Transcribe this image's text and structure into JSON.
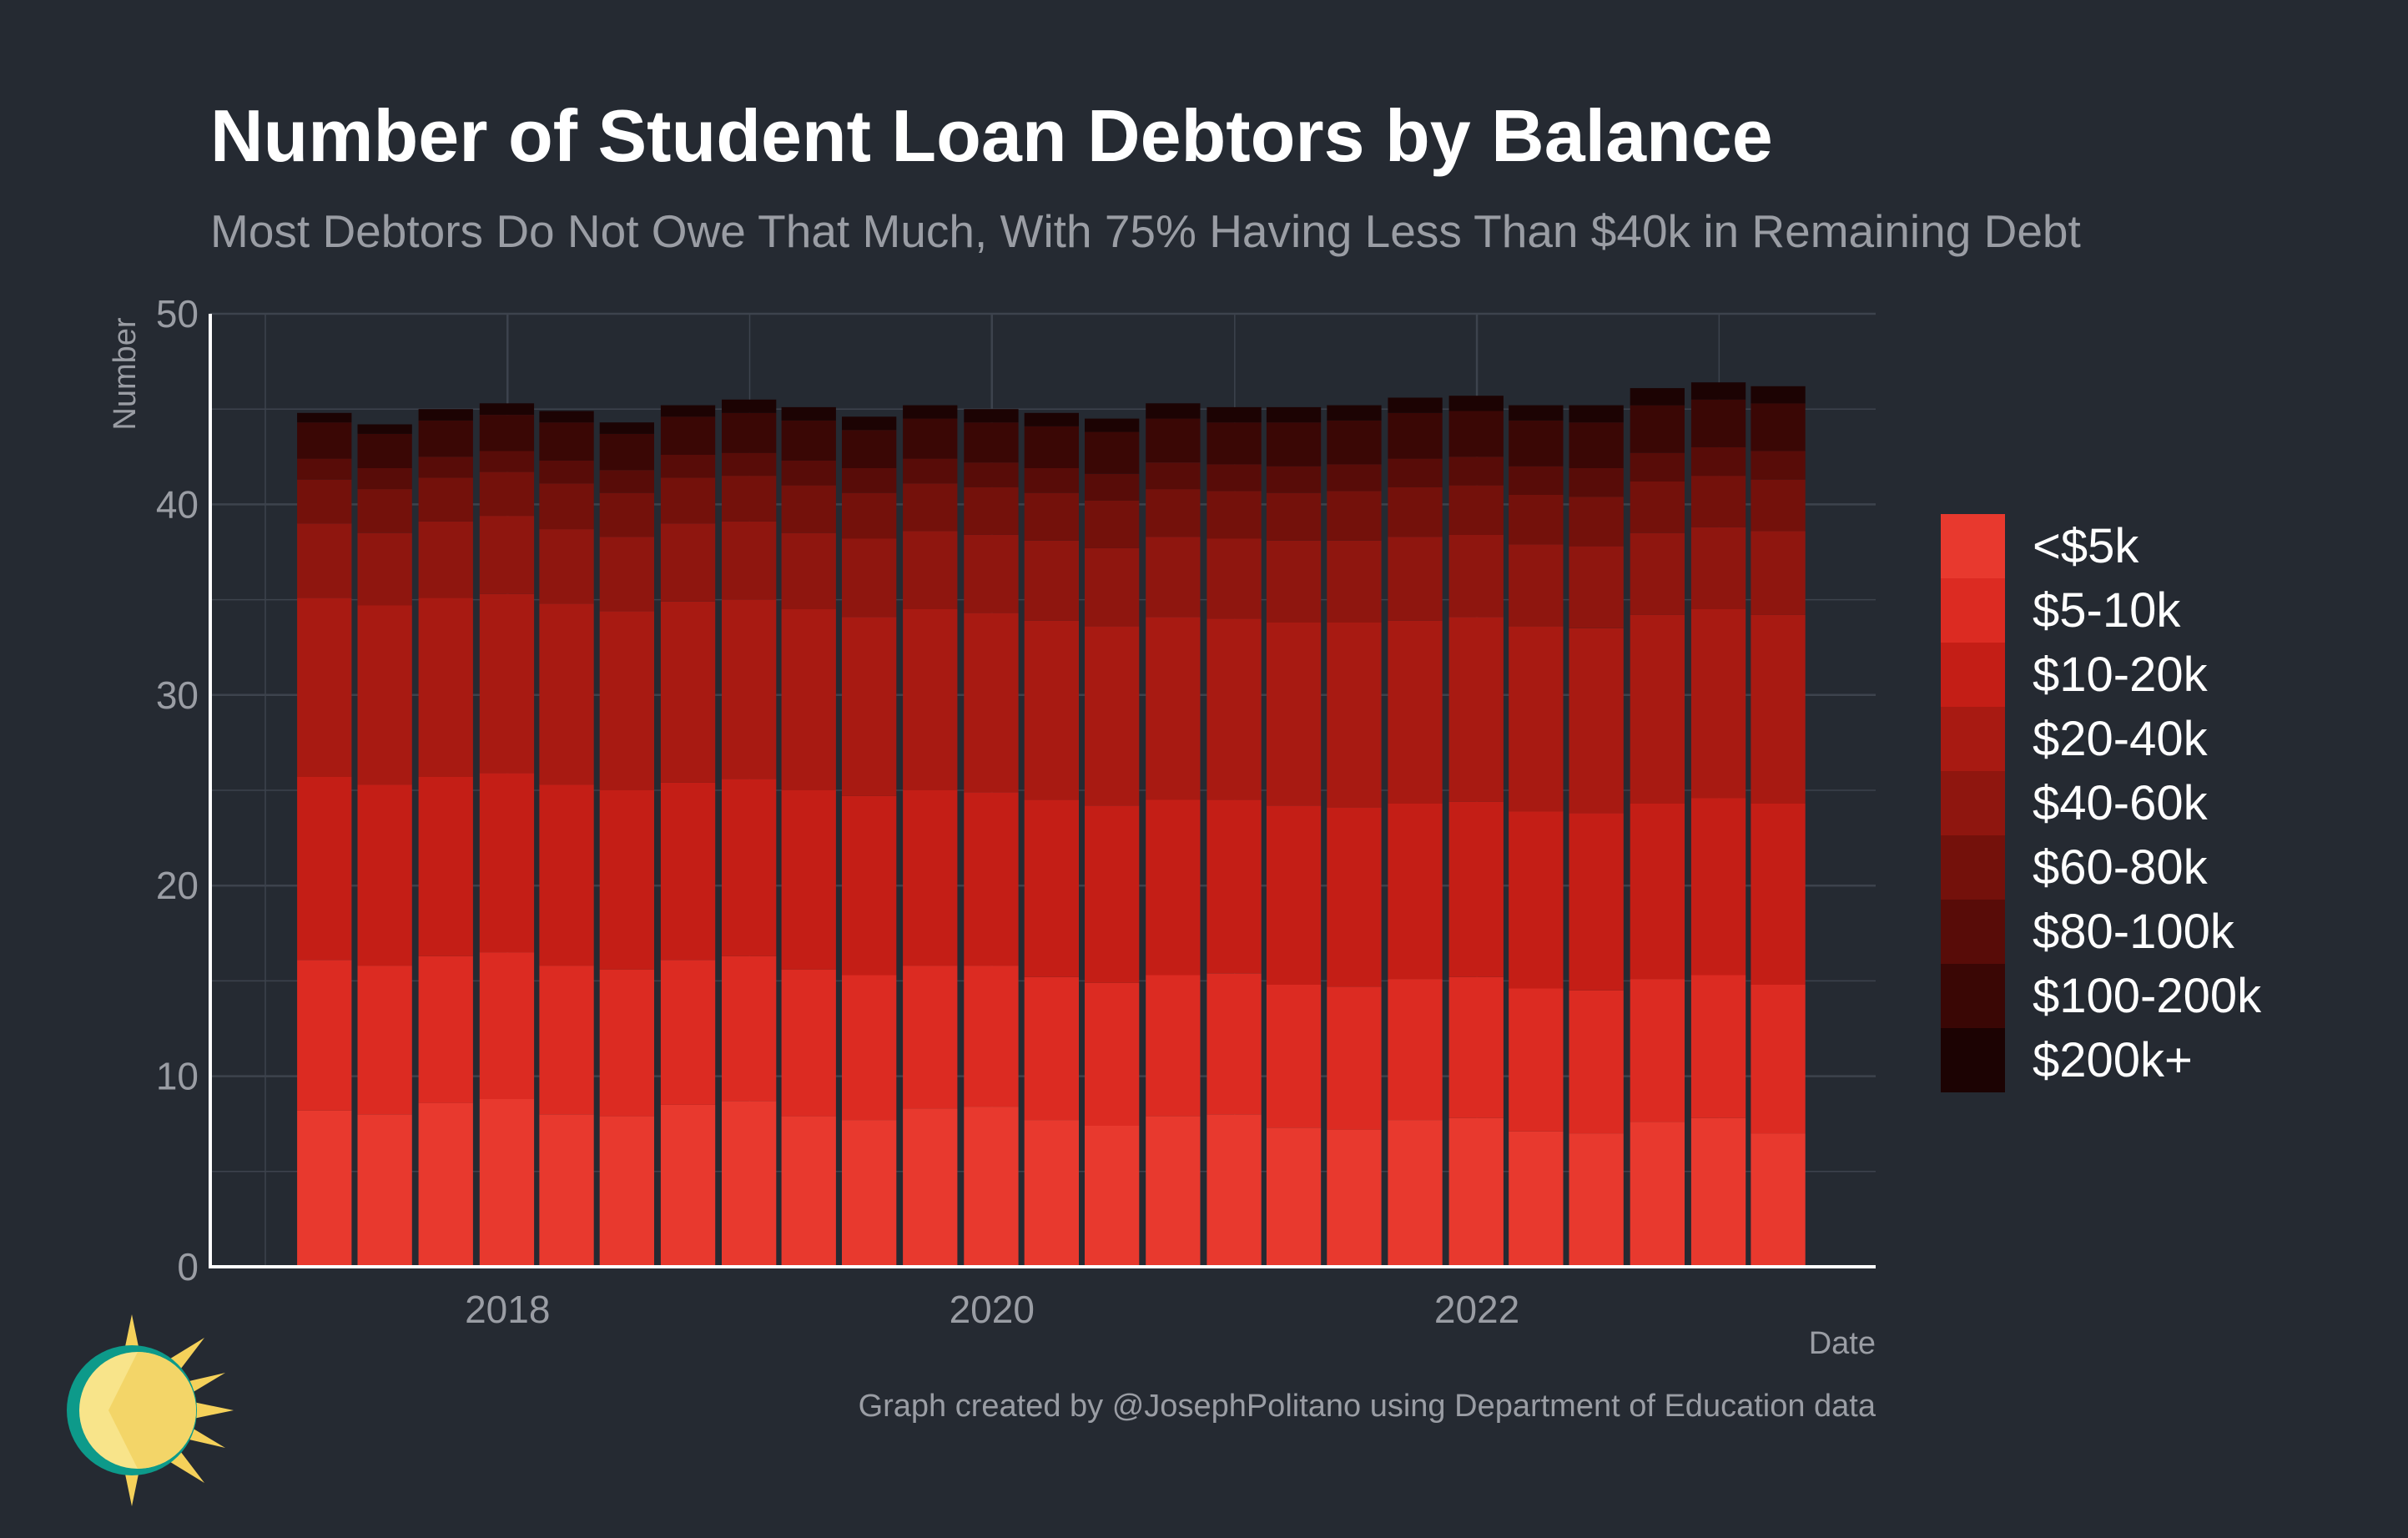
{
  "chart_data": {
    "type": "bar",
    "stacked": true,
    "title": "Number of Student Loan Debtors by Balance",
    "subtitle": "Most Debtors Do Not Owe That Much, With 75% Having Less Than $40k in Remaining Debt",
    "xlabel": "Date",
    "ylabel": "Number",
    "ylim": [
      0,
      50
    ],
    "yticks": [
      0,
      10,
      20,
      30,
      40,
      50
    ],
    "xticks": [
      "2018",
      "2020",
      "2022"
    ],
    "xlim": [
      "2016-10-10",
      "2023-08-25"
    ],
    "grid": true,
    "legend_position": "right",
    "caption": "Graph created by @JosephPolitano using Department of Education data",
    "categories": [
      "2017-03-31",
      "2017-06-30",
      "2017-09-30",
      "2017-12-31",
      "2018-03-31",
      "2018-06-30",
      "2018-09-30",
      "2018-12-31",
      "2019-03-31",
      "2019-06-30",
      "2019-09-30",
      "2019-12-31",
      "2020-03-31",
      "2020-06-30",
      "2020-09-30",
      "2020-12-31",
      "2021-03-31",
      "2021-06-30",
      "2021-09-30",
      "2021-12-31",
      "2022-03-31",
      "2022-06-30",
      "2022-09-30",
      "2022-12-31",
      "2023-03-31"
    ],
    "series": [
      {
        "name": "<$5k",
        "color": "#e8392e",
        "values": [
          8.2,
          8.0,
          8.6,
          8.8,
          8.0,
          7.9,
          8.5,
          8.7,
          7.9,
          7.7,
          8.3,
          8.4,
          7.7,
          7.4,
          7.9,
          8.0,
          7.3,
          7.2,
          7.7,
          7.8,
          7.1,
          7.0,
          7.6,
          7.8,
          7.0
        ]
      },
      {
        "name": "$5-10k",
        "color": "#dc2b22",
        "values": [
          7.9,
          7.8,
          7.7,
          7.7,
          7.8,
          7.7,
          7.6,
          7.6,
          7.7,
          7.6,
          7.5,
          7.4,
          7.5,
          7.5,
          7.4,
          7.4,
          7.5,
          7.5,
          7.4,
          7.4,
          7.5,
          7.5,
          7.5,
          7.5,
          7.8
        ]
      },
      {
        "name": "$10-20k",
        "color": "#c41e16",
        "values": [
          9.6,
          9.5,
          9.4,
          9.4,
          9.5,
          9.4,
          9.3,
          9.3,
          9.4,
          9.4,
          9.2,
          9.1,
          9.3,
          9.3,
          9.2,
          9.1,
          9.4,
          9.4,
          9.2,
          9.2,
          9.3,
          9.3,
          9.2,
          9.3,
          9.5
        ]
      },
      {
        "name": "$20-40k",
        "color": "#a81a12",
        "values": [
          9.4,
          9.4,
          9.4,
          9.4,
          9.5,
          9.4,
          9.5,
          9.4,
          9.5,
          9.4,
          9.5,
          9.4,
          9.4,
          9.4,
          9.6,
          9.5,
          9.6,
          9.7,
          9.6,
          9.7,
          9.7,
          9.7,
          9.9,
          9.9,
          9.9
        ]
      },
      {
        "name": "$40-60k",
        "color": "#8f160f",
        "values": [
          3.9,
          3.8,
          4.0,
          4.1,
          3.9,
          3.9,
          4.1,
          4.1,
          4.0,
          4.1,
          4.1,
          4.1,
          4.2,
          4.1,
          4.2,
          4.2,
          4.3,
          4.3,
          4.4,
          4.3,
          4.3,
          4.3,
          4.3,
          4.3,
          4.4
        ]
      },
      {
        "name": "$60-80k",
        "color": "#74110b",
        "values": [
          2.3,
          2.3,
          2.3,
          2.3,
          2.4,
          2.3,
          2.4,
          2.4,
          2.5,
          2.4,
          2.5,
          2.5,
          2.5,
          2.5,
          2.5,
          2.5,
          2.5,
          2.6,
          2.6,
          2.6,
          2.6,
          2.6,
          2.7,
          2.7,
          2.7
        ]
      },
      {
        "name": "$80-100k",
        "color": "#580c08",
        "values": [
          1.1,
          1.1,
          1.1,
          1.1,
          1.2,
          1.2,
          1.2,
          1.2,
          1.3,
          1.3,
          1.3,
          1.3,
          1.3,
          1.4,
          1.4,
          1.4,
          1.4,
          1.4,
          1.5,
          1.5,
          1.5,
          1.5,
          1.5,
          1.5,
          1.5
        ]
      },
      {
        "name": "$100-200k",
        "color": "#3a0705",
        "values": [
          1.9,
          1.8,
          1.9,
          1.9,
          2.0,
          1.9,
          2.0,
          2.1,
          2.1,
          2.0,
          2.1,
          2.1,
          2.2,
          2.2,
          2.3,
          2.2,
          2.3,
          2.3,
          2.4,
          2.4,
          2.4,
          2.4,
          2.5,
          2.5,
          2.5
        ]
      },
      {
        "name": "$200k+",
        "color": "#1c0303",
        "values": [
          0.5,
          0.5,
          0.6,
          0.6,
          0.6,
          0.6,
          0.6,
          0.7,
          0.7,
          0.7,
          0.7,
          0.7,
          0.7,
          0.7,
          0.8,
          0.8,
          0.8,
          0.8,
          0.8,
          0.8,
          0.8,
          0.9,
          0.9,
          0.9,
          0.9
        ]
      }
    ]
  }
}
